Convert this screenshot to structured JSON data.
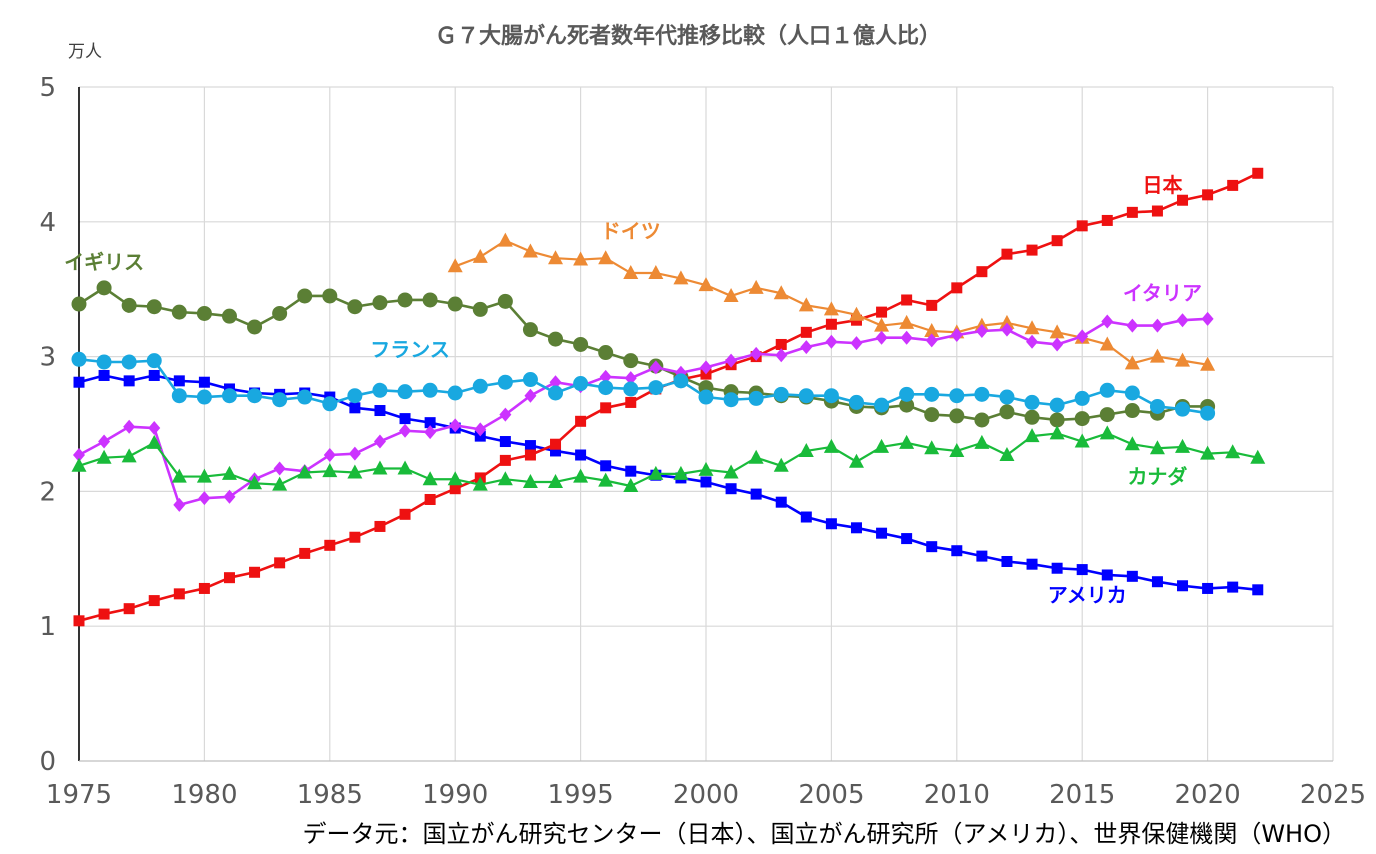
{
  "chart_data": {
    "type": "line",
    "title": "Ｇ７大腸がん死者数年代推移比較（人口１億人比）",
    "ylabel": "万人",
    "xlim": [
      1975,
      2025
    ],
    "ylim": [
      0,
      5
    ],
    "x_ticks": [
      1975,
      1980,
      1985,
      1990,
      1995,
      2000,
      2005,
      2010,
      2015,
      2020,
      2025
    ],
    "y_ticks": [
      0,
      1,
      2,
      3,
      4,
      5
    ],
    "grid": true,
    "source": "データ元：国立がん研究センター（日本）、国立がん研究所（アメリカ）、世界保健機関（WHO）",
    "series": [
      {
        "name": "イギリス",
        "color": "#5b7f35",
        "marker": "circle",
        "x": [
          1975,
          1976,
          1977,
          1978,
          1979,
          1980,
          1981,
          1982,
          1983,
          1984,
          1985,
          1986,
          1987,
          1988,
          1989,
          1990,
          1991,
          1992,
          1993,
          1994,
          1995,
          1996,
          1997,
          1998,
          1999,
          2000,
          2001,
          2002,
          2003,
          2004,
          2005,
          2006,
          2007,
          2008,
          2009,
          2010,
          2011,
          2012,
          2013,
          2014,
          2015,
          2016,
          2017,
          2018,
          2019,
          2020
        ],
        "values": [
          3.39,
          3.51,
          3.38,
          3.37,
          3.33,
          3.32,
          3.3,
          3.22,
          3.32,
          3.45,
          3.45,
          3.37,
          3.4,
          3.42,
          3.42,
          3.39,
          3.35,
          3.41,
          3.2,
          3.13,
          3.09,
          3.03,
          2.97,
          2.93,
          2.85,
          2.77,
          2.74,
          2.73,
          2.71,
          2.7,
          2.67,
          2.63,
          2.62,
          2.64,
          2.57,
          2.56,
          2.53,
          2.59,
          2.55,
          2.53,
          2.54,
          2.57,
          2.6,
          2.58,
          2.63,
          2.63
        ]
      },
      {
        "name": "アメリカ",
        "color": "#0000ff",
        "marker": "square",
        "x": [
          1975,
          1976,
          1977,
          1978,
          1979,
          1980,
          1981,
          1982,
          1983,
          1984,
          1985,
          1986,
          1987,
          1988,
          1989,
          1990,
          1991,
          1992,
          1993,
          1994,
          1995,
          1996,
          1997,
          1998,
          1999,
          2000,
          2001,
          2002,
          2003,
          2004,
          2005,
          2006,
          2007,
          2008,
          2009,
          2010,
          2011,
          2012,
          2013,
          2014,
          2015,
          2016,
          2017,
          2018,
          2019,
          2020,
          2021,
          2022
        ],
        "values": [
          2.81,
          2.86,
          2.82,
          2.86,
          2.82,
          2.81,
          2.76,
          2.73,
          2.72,
          2.73,
          2.7,
          2.62,
          2.6,
          2.54,
          2.51,
          2.47,
          2.41,
          2.37,
          2.34,
          2.3,
          2.27,
          2.19,
          2.15,
          2.12,
          2.1,
          2.07,
          2.02,
          1.98,
          1.92,
          1.81,
          1.76,
          1.73,
          1.69,
          1.65,
          1.59,
          1.56,
          1.52,
          1.48,
          1.46,
          1.43,
          1.42,
          1.38,
          1.37,
          1.33,
          1.3,
          1.28,
          1.29,
          1.27
        ]
      },
      {
        "name": "日本",
        "color": "#ee1111",
        "marker": "square",
        "x": [
          1975,
          1976,
          1977,
          1978,
          1979,
          1980,
          1981,
          1982,
          1983,
          1984,
          1985,
          1986,
          1987,
          1988,
          1989,
          1990,
          1991,
          1992,
          1993,
          1994,
          1995,
          1996,
          1997,
          1998,
          1999,
          2000,
          2001,
          2002,
          2003,
          2004,
          2005,
          2006,
          2007,
          2008,
          2009,
          2010,
          2011,
          2012,
          2013,
          2014,
          2015,
          2016,
          2017,
          2018,
          2019,
          2020,
          2021,
          2022
        ],
        "values": [
          1.04,
          1.09,
          1.13,
          1.19,
          1.24,
          1.28,
          1.36,
          1.4,
          1.47,
          1.54,
          1.6,
          1.66,
          1.74,
          1.83,
          1.94,
          2.02,
          2.1,
          2.23,
          2.27,
          2.35,
          2.52,
          2.62,
          2.66,
          2.76,
          2.83,
          2.87,
          2.94,
          3.0,
          3.09,
          3.18,
          3.24,
          3.27,
          3.33,
          3.42,
          3.38,
          3.51,
          3.63,
          3.76,
          3.79,
          3.86,
          3.97,
          4.01,
          4.07,
          4.08,
          4.16,
          4.2,
          4.27,
          4.36
        ]
      },
      {
        "name": "ドイツ",
        "color": "#ed8a34",
        "marker": "triangle",
        "x": [
          1990,
          1991,
          1992,
          1993,
          1994,
          1995,
          1996,
          1997,
          1998,
          1999,
          2000,
          2001,
          2002,
          2003,
          2004,
          2005,
          2006,
          2007,
          2008,
          2009,
          2010,
          2011,
          2012,
          2013,
          2014,
          2015,
          2016,
          2017,
          2018,
          2019,
          2020
        ],
        "values": [
          3.67,
          3.74,
          3.86,
          3.78,
          3.73,
          3.72,
          3.73,
          3.62,
          3.62,
          3.58,
          3.53,
          3.45,
          3.51,
          3.47,
          3.38,
          3.35,
          3.31,
          3.23,
          3.25,
          3.19,
          3.18,
          3.23,
          3.25,
          3.21,
          3.18,
          3.14,
          3.09,
          2.95,
          3.0,
          2.97,
          2.94
        ]
      },
      {
        "name": "イタリア",
        "color": "#cc33ff",
        "marker": "diamond",
        "x": [
          1975,
          1976,
          1977,
          1978,
          1979,
          1980,
          1981,
          1982,
          1983,
          1984,
          1985,
          1986,
          1987,
          1988,
          1989,
          1990,
          1991,
          1992,
          1993,
          1994,
          1995,
          1996,
          1997,
          1998,
          1999,
          2000,
          2001,
          2002,
          2003,
          2004,
          2005,
          2006,
          2007,
          2008,
          2009,
          2010,
          2011,
          2012,
          2013,
          2014,
          2015,
          2016,
          2017,
          2018,
          2019,
          2020
        ],
        "values": [
          2.27,
          2.37,
          2.48,
          2.47,
          1.9,
          1.95,
          1.96,
          2.09,
          2.17,
          2.15,
          2.27,
          2.28,
          2.37,
          2.45,
          2.44,
          2.49,
          2.46,
          2.57,
          2.71,
          2.81,
          2.78,
          2.85,
          2.84,
          2.92,
          2.88,
          2.92,
          2.97,
          3.02,
          3.01,
          3.07,
          3.11,
          3.1,
          3.14,
          3.14,
          3.12,
          3.16,
          3.19,
          3.2,
          3.11,
          3.09,
          3.15,
          3.26,
          3.23,
          3.23,
          3.27,
          3.28
        ]
      },
      {
        "name": "フランス",
        "color": "#19a8e0",
        "marker": "circle",
        "x": [
          1975,
          1976,
          1977,
          1978,
          1979,
          1980,
          1981,
          1982,
          1983,
          1984,
          1985,
          1986,
          1987,
          1988,
          1989,
          1990,
          1991,
          1992,
          1993,
          1994,
          1995,
          1996,
          1997,
          1998,
          1999,
          2000,
          2001,
          2002,
          2003,
          2004,
          2005,
          2006,
          2007,
          2008,
          2009,
          2010,
          2011,
          2012,
          2013,
          2014,
          2015,
          2016,
          2017,
          2018,
          2019,
          2020
        ],
        "values": [
          2.98,
          2.96,
          2.96,
          2.97,
          2.71,
          2.7,
          2.71,
          2.71,
          2.68,
          2.7,
          2.65,
          2.71,
          2.75,
          2.74,
          2.75,
          2.73,
          2.78,
          2.81,
          2.83,
          2.73,
          2.8,
          2.77,
          2.76,
          2.77,
          2.82,
          2.7,
          2.68,
          2.69,
          2.72,
          2.71,
          2.71,
          2.66,
          2.64,
          2.72,
          2.72,
          2.71,
          2.72,
          2.7,
          2.66,
          2.64,
          2.69,
          2.75,
          2.73,
          2.63,
          2.61,
          2.58
        ]
      },
      {
        "name": "カナダ",
        "color": "#19bb3a",
        "marker": "triangle",
        "x": [
          1975,
          1976,
          1977,
          1978,
          1979,
          1980,
          1981,
          1982,
          1983,
          1984,
          1985,
          1986,
          1987,
          1988,
          1989,
          1990,
          1991,
          1992,
          1993,
          1994,
          1995,
          1996,
          1997,
          1998,
          1999,
          2000,
          2001,
          2002,
          2003,
          2004,
          2005,
          2006,
          2007,
          2008,
          2009,
          2010,
          2011,
          2012,
          2013,
          2014,
          2015,
          2016,
          2017,
          2018,
          2019,
          2020,
          2021,
          2022
        ],
        "values": [
          2.19,
          2.25,
          2.26,
          2.36,
          2.11,
          2.11,
          2.13,
          2.06,
          2.05,
          2.14,
          2.15,
          2.14,
          2.17,
          2.17,
          2.09,
          2.09,
          2.05,
          2.09,
          2.07,
          2.07,
          2.11,
          2.08,
          2.04,
          2.13,
          2.13,
          2.16,
          2.14,
          2.25,
          2.19,
          2.3,
          2.33,
          2.22,
          2.33,
          2.36,
          2.32,
          2.3,
          2.36,
          2.27,
          2.41,
          2.43,
          2.37,
          2.43,
          2.35,
          2.32,
          2.33,
          2.28,
          2.29,
          2.25
        ]
      }
    ]
  }
}
